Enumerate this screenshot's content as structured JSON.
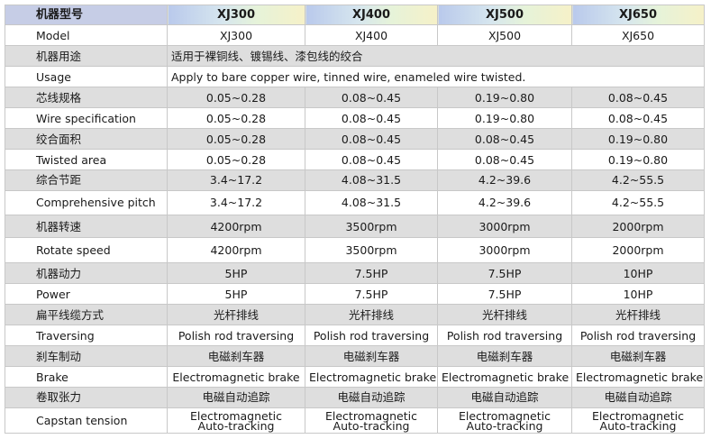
{
  "header": {
    "label": "机器型号",
    "models": [
      "XJ300",
      "XJ400",
      "XJ500",
      "XJ650"
    ]
  },
  "rows": [
    {
      "label": "Model",
      "values": [
        "XJ300",
        "XJ400",
        "XJ500",
        "XJ650"
      ]
    },
    {
      "label": "机器用途",
      "span": "适用于裸铜线、镀锡线、漆包线的绞合"
    },
    {
      "label": "Usage",
      "span": "Apply to bare copper wire, tinned wire, enameled wire twisted."
    },
    {
      "label": "芯线规格",
      "values": [
        "0.05~0.28",
        "0.08~0.45",
        "0.19~0.80",
        "0.08~0.45"
      ]
    },
    {
      "label": "Wire specification",
      "values": [
        "0.05~0.28",
        "0.08~0.45",
        "0.19~0.80",
        "0.08~0.45"
      ]
    },
    {
      "label": "绞合面积",
      "values": [
        "0.05~0.28",
        "0.08~0.45",
        "0.08~0.45",
        "0.19~0.80"
      ]
    },
    {
      "label": "Twisted area",
      "values": [
        "0.05~0.28",
        "0.08~0.45",
        "0.08~0.45",
        "0.19~0.80"
      ]
    },
    {
      "label": "综合节距",
      "values": [
        "3.4~17.2",
        "4.08~31.5",
        "4.2~39.6",
        "4.2~55.5"
      ]
    },
    {
      "label": "Comprehensive pitch",
      "values": [
        "3.4~17.2",
        "4.08~31.5",
        "4.2~39.6",
        "4.2~55.5"
      ]
    },
    {
      "label": "机器转速",
      "values": [
        "4200rpm",
        "3500rpm",
        "3000rpm",
        "2000rpm"
      ]
    },
    {
      "label": "Rotate speed",
      "values": [
        "4200rpm",
        "3500rpm",
        "3000rpm",
        "2000rpm"
      ]
    },
    {
      "label": "机器动力",
      "values": [
        "5HP",
        "7.5HP",
        "7.5HP",
        "10HP"
      ]
    },
    {
      "label": "Power",
      "values": [
        "5HP",
        "7.5HP",
        "7.5HP",
        "10HP"
      ]
    },
    {
      "label": "扁平线缆方式",
      "values": [
        "光杆排线",
        "光杆排线",
        "光杆排线",
        "光杆排线"
      ]
    },
    {
      "label": "Traversing",
      "values": [
        "Polish rod traversing",
        "Polish rod traversing",
        "Polish rod traversing",
        "Polish rod traversing"
      ]
    },
    {
      "label": "刹车制动",
      "values": [
        "电磁刹车器",
        "电磁刹车器",
        "电磁刹车器",
        "电磁刹车器"
      ]
    },
    {
      "label": "Brake",
      "values": [
        "Electromagnetic brake",
        "Electromagnetic brake",
        "Electromagnetic brake",
        "Electromagnetic brake"
      ]
    },
    {
      "label": "卷取张力",
      "values": [
        "电磁自动追踪",
        "电磁自动追踪",
        "电磁自动追踪",
        "电磁自动追踪"
      ]
    },
    {
      "label": "Capstan tension",
      "values": [
        [
          "Electromagnetic",
          "Auto-tracking"
        ],
        [
          "Electromagnetic",
          "Auto-tracking"
        ],
        [
          "Electromagnetic",
          "Auto-tracking"
        ],
        [
          "Electromagnetic",
          "Auto-tracking"
        ]
      ]
    }
  ]
}
